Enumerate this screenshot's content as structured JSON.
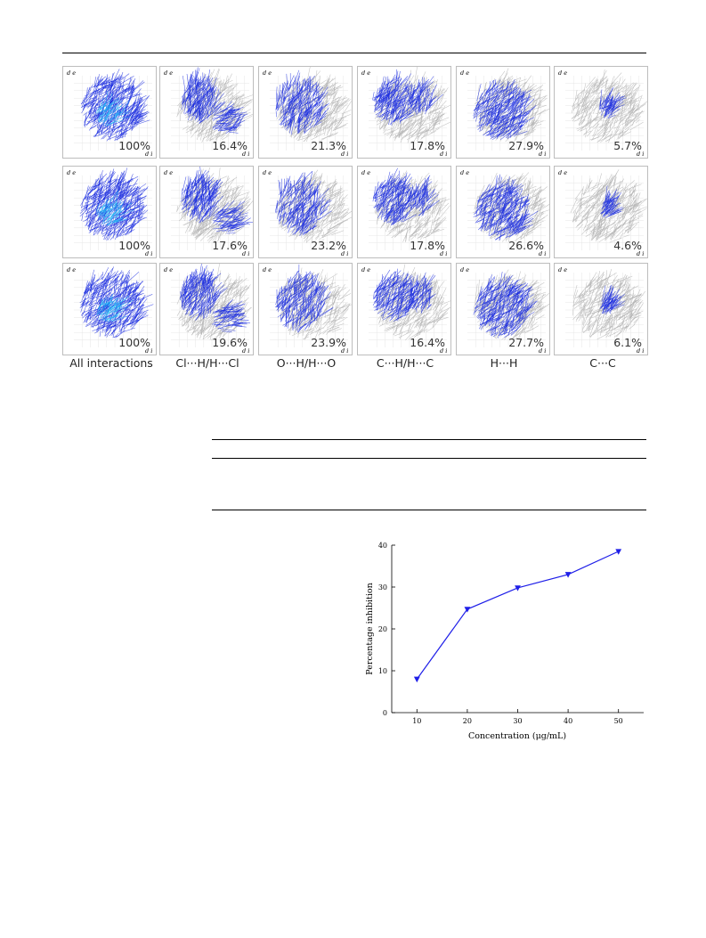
{
  "fingerprint_figure": {
    "axis_labels": {
      "de": "d e",
      "di": "d i"
    },
    "column_labels": [
      "All interactions",
      "Cl···H/H···Cl",
      "O···H/H···O",
      "C···H/H···C",
      "H···H",
      "C···C"
    ],
    "rows": [
      [
        "100%",
        "16.4%",
        "21.3%",
        "17.8%",
        "27.9%",
        "5.7%"
      ],
      [
        "100%",
        "17.6%",
        "23.2%",
        "17.8%",
        "26.6%",
        "4.6%"
      ],
      [
        "100%",
        "19.6%",
        "23.9%",
        "16.4%",
        "27.7%",
        "6.1%"
      ]
    ],
    "colors": {
      "plot": "#1d2ee0",
      "highlight": "#25b6f5",
      "background_plot": "#b3b3b3"
    }
  },
  "chart_data": {
    "type": "line",
    "title": "",
    "xlabel": "Concentration (μg/mL)",
    "ylabel": "Percentage inhibition",
    "x": [
      10,
      20,
      30,
      40,
      50
    ],
    "series": [
      {
        "values": [
          8,
          24.7,
          29.8,
          33,
          38.5
        ]
      }
    ],
    "xlim": [
      5,
      55
    ],
    "ylim": [
      0,
      40
    ],
    "xticks": [
      "10",
      "20",
      "30",
      "40",
      "50"
    ],
    "yticks": [
      "0",
      "10",
      "20",
      "30",
      "40"
    ],
    "color": "#1f1fe8",
    "marker": "triangle-down",
    "grid": false
  }
}
